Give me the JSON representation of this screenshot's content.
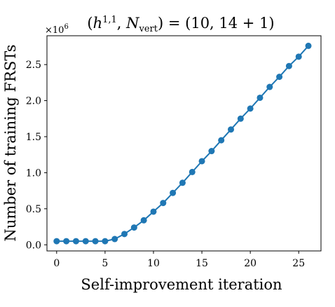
{
  "chart_data": {
    "type": "line",
    "title": "(h^{1,1}, N_vert) = (10, 14 + 1)",
    "title_parts": {
      "open": "(",
      "h": "h",
      "h_sup": "1,1",
      "comma": ", ",
      "n": "N",
      "n_sub": "vert",
      "rhs": ") = (10, 14 + 1)"
    },
    "xlabel": "Self-improvement iteration",
    "ylabel": "Number of training FRSTs",
    "y_multiplier_base": "×10",
    "y_multiplier_exp": "6",
    "xlim": [
      -1,
      27.3
    ],
    "ylim": [
      -0.085,
      2.9
    ],
    "xticks": [
      0,
      5,
      10,
      15,
      20,
      25
    ],
    "yticks": [
      0.0,
      0.5,
      1.0,
      1.5,
      2.0,
      2.5
    ],
    "ytick_labels": [
      "0.0",
      "0.5",
      "1.0",
      "1.5",
      "2.0",
      "2.5"
    ],
    "grid": false,
    "color": "#1f77b4",
    "series": [
      {
        "x": [
          0,
          1,
          2,
          3,
          4,
          5,
          6,
          7,
          8,
          9,
          10,
          11,
          12,
          13,
          14,
          15,
          16,
          17,
          18,
          19,
          20,
          21,
          22,
          23,
          24,
          25,
          26
        ],
        "y": [
          0.05,
          0.05,
          0.05,
          0.05,
          0.05,
          0.05,
          0.08,
          0.15,
          0.24,
          0.34,
          0.46,
          0.58,
          0.72,
          0.86,
          1.01,
          1.16,
          1.3,
          1.45,
          1.6,
          1.75,
          1.89,
          2.04,
          2.19,
          2.33,
          2.48,
          2.61,
          2.76
        ]
      }
    ]
  }
}
